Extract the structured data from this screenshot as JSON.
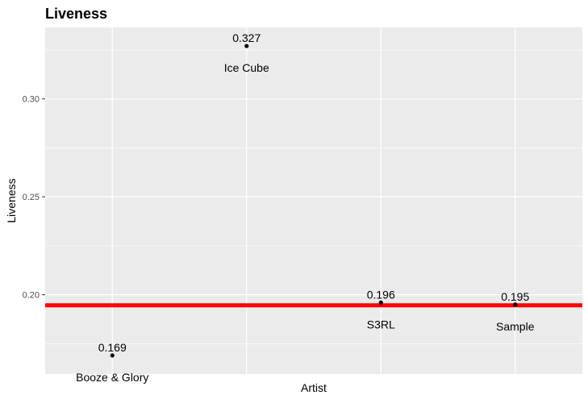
{
  "chart_data": {
    "type": "scatter",
    "title": "Liveness",
    "xlabel": "Artist",
    "ylabel": "Liveness",
    "categories": [
      "Booze & Glory",
      "Ice Cube",
      "S3RL",
      "Sample"
    ],
    "values": [
      0.169,
      0.327,
      0.196,
      0.195
    ],
    "value_labels": [
      "0.169",
      "0.327",
      "0.196",
      "0.195"
    ],
    "y_ticks": [
      0.2,
      0.25,
      0.3
    ],
    "y_tick_labels": [
      "0.20",
      "0.25",
      "0.30"
    ],
    "ylim": [
      0.1595,
      0.3365
    ],
    "hline": {
      "value": 0.1946,
      "color": "#ff0000"
    },
    "background": "#ebebeb",
    "grid": true,
    "grid_color": "#ffffff",
    "point_color": "#000000",
    "x_tick_labels_visible": false,
    "legend": "none"
  }
}
